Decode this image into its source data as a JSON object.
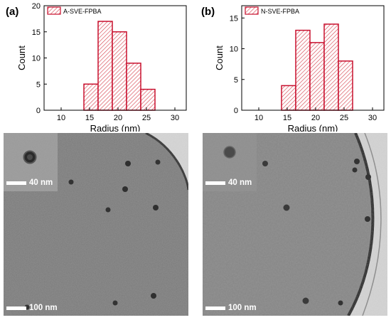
{
  "panels": [
    {
      "label": "(a)",
      "legend": "A-SVE-FPBA",
      "inset_scale": "40 nm",
      "main_scale": "100 nm"
    },
    {
      "label": "(b)",
      "legend": "N-SVE-FPBA",
      "inset_scale": "40 nm",
      "main_scale": "100 nm"
    }
  ],
  "colors": {
    "bar_edge": "#c8102e",
    "hatch": "#d84a55",
    "tem_a": "#7d7d7d",
    "tem_b": "#868686"
  },
  "chart_data": [
    {
      "type": "bar",
      "legend": "A-SVE-FPBA",
      "xlabel": "Radius (nm)",
      "ylabel": "Count",
      "xlim": [
        7,
        32
      ],
      "ylim": [
        0,
        20
      ],
      "xticks": [
        10,
        15,
        20,
        25,
        30
      ],
      "yticks": [
        0,
        5,
        10,
        15,
        20
      ],
      "bin_width": 2.5,
      "bins": [
        {
          "start": 14,
          "count": 5
        },
        {
          "start": 16.5,
          "count": 17
        },
        {
          "start": 19,
          "count": 15
        },
        {
          "start": 21.5,
          "count": 9
        },
        {
          "start": 24,
          "count": 4
        }
      ]
    },
    {
      "type": "bar",
      "legend": "N-SVE-FPBA",
      "xlabel": "Radius (nm)",
      "ylabel": "Count",
      "xlim": [
        7,
        32
      ],
      "ylim": [
        0,
        17
      ],
      "xticks": [
        10,
        15,
        20,
        25,
        30
      ],
      "yticks": [
        0,
        5,
        10,
        15
      ],
      "bin_width": 2.5,
      "bins": [
        {
          "start": 14,
          "count": 4
        },
        {
          "start": 16.5,
          "count": 13
        },
        {
          "start": 19,
          "count": 11
        },
        {
          "start": 21.5,
          "count": 14
        },
        {
          "start": 24,
          "count": 8
        }
      ]
    }
  ]
}
